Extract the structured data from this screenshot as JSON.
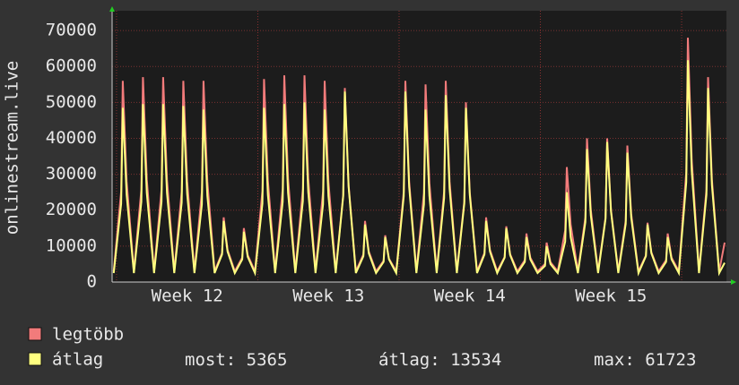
{
  "chart_data": {
    "type": "line",
    "ylabel": "onlinestream.live",
    "xlim": [
      0,
      30.44
    ],
    "ylim": [
      0,
      75500
    ],
    "yticks": [
      0,
      10000,
      20000,
      30000,
      40000,
      50000,
      60000,
      70000
    ],
    "xticks": [
      {
        "value": 3.72,
        "label": "Week 12"
      },
      {
        "value": 10.72,
        "label": "Week 13"
      },
      {
        "value": 17.72,
        "label": "Week 14"
      },
      {
        "value": 24.72,
        "label": "Week 15"
      }
    ],
    "xgrid": [
      0.22,
      7.22,
      14.22,
      21.22,
      28.22
    ],
    "grid": true,
    "x": [
      0.08,
      0.45,
      0.53,
      0.72,
      1.08,
      1.45,
      1.53,
      1.72,
      2.08,
      2.45,
      2.53,
      2.72,
      3.08,
      3.45,
      3.53,
      3.72,
      4.08,
      4.45,
      4.53,
      4.72,
      5.08,
      5.45,
      5.53,
      5.72,
      6.08,
      6.45,
      6.53,
      6.72,
      7.08,
      7.45,
      7.53,
      7.72,
      8.08,
      8.45,
      8.53,
      8.72,
      9.08,
      9.45,
      9.53,
      9.72,
      10.08,
      10.45,
      10.53,
      10.72,
      11.08,
      11.45,
      11.53,
      11.72,
      12.08,
      12.45,
      12.53,
      12.72,
      13.08,
      13.45,
      13.53,
      13.72,
      14.08,
      14.45,
      14.53,
      14.72,
      15.08,
      15.45,
      15.53,
      15.72,
      16.08,
      16.45,
      16.53,
      16.72,
      17.08,
      17.45,
      17.53,
      17.72,
      18.08,
      18.45,
      18.53,
      18.72,
      19.08,
      19.45,
      19.53,
      19.72,
      20.08,
      20.45,
      20.53,
      20.72,
      21.08,
      21.45,
      21.53,
      21.72,
      22.08,
      22.45,
      22.53,
      22.72,
      23.08,
      23.45,
      23.53,
      23.72,
      24.08,
      24.45,
      24.53,
      24.72,
      25.08,
      25.45,
      25.53,
      25.72,
      26.08,
      26.45,
      26.53,
      26.72,
      27.08,
      27.45,
      27.53,
      27.72,
      28.08,
      28.45,
      28.53,
      28.72,
      29.08,
      29.45,
      29.53,
      29.72,
      30.08,
      30.35
    ],
    "series": [
      {
        "name": "legtöbb",
        "color": "#f27b7b",
        "values": [
          3000,
          25200,
          56000,
          28000,
          3000,
          25700,
          57000,
          28500,
          3000,
          25700,
          57000,
          28500,
          3000,
          25200,
          56000,
          28000,
          3000,
          25200,
          56000,
          28000,
          3000,
          8100,
          18000,
          9000,
          3000,
          6800,
          15000,
          7500,
          3000,
          25400,
          56500,
          28300,
          3000,
          25900,
          57500,
          28800,
          3000,
          25900,
          57500,
          28800,
          3000,
          25200,
          56000,
          28000,
          3000,
          24300,
          54000,
          27000,
          3000,
          7700,
          17000,
          8500,
          3000,
          5900,
          13000,
          6500,
          3000,
          25200,
          56000,
          28000,
          3000,
          24800,
          55000,
          27500,
          3000,
          25200,
          56000,
          28000,
          3000,
          22500,
          50000,
          25000,
          3000,
          8100,
          18000,
          9000,
          3000,
          7000,
          15500,
          7800,
          3000,
          6100,
          13500,
          6800,
          3000,
          5000,
          11000,
          5500,
          3000,
          14400,
          32000,
          16000,
          3000,
          18000,
          40000,
          20000,
          3000,
          18000,
          40000,
          20000,
          3000,
          17100,
          38000,
          19000,
          3000,
          7400,
          16500,
          8300,
          3000,
          6100,
          13500,
          6800,
          3000,
          30600,
          68000,
          34000,
          3000,
          25700,
          57000,
          28500,
          3000,
          11000
        ]
      },
      {
        "name": "átlag",
        "color": "#ffff80",
        "values": [
          2500,
          21800,
          48500,
          24300,
          2500,
          22300,
          49500,
          24800,
          2500,
          22300,
          49500,
          24800,
          2500,
          22100,
          49000,
          24500,
          2500,
          21600,
          48000,
          24000,
          2500,
          7700,
          17000,
          8500,
          2500,
          6300,
          14000,
          7000,
          2500,
          21800,
          48500,
          24300,
          2500,
          22300,
          49500,
          24800,
          2500,
          22500,
          50000,
          25000,
          2500,
          21600,
          48000,
          24000,
          2500,
          23900,
          53000,
          26500,
          2500,
          7200,
          16000,
          8000,
          2500,
          5600,
          12500,
          6300,
          2500,
          23900,
          53000,
          26500,
          2500,
          21600,
          48000,
          24000,
          2500,
          23400,
          52000,
          26000,
          2500,
          21800,
          48500,
          24300,
          2500,
          7700,
          17000,
          8500,
          2500,
          6800,
          15000,
          7500,
          2500,
          5600,
          12500,
          6300,
          2500,
          4500,
          10000,
          5000,
          2500,
          11300,
          25000,
          12500,
          2500,
          16700,
          37000,
          18500,
          2500,
          17600,
          39000,
          19500,
          2500,
          16200,
          36000,
          18000,
          2500,
          7200,
          16000,
          8000,
          2500,
          5600,
          12500,
          6300,
          2500,
          27800,
          61723,
          30900,
          2500,
          24300,
          54000,
          27000,
          2500,
          5365
        ]
      }
    ],
    "stats": [
      {
        "label": "most:",
        "value": 5365
      },
      {
        "label": "átlag:",
        "value": 13534
      },
      {
        "label": "max:",
        "value": 61723
      }
    ]
  }
}
